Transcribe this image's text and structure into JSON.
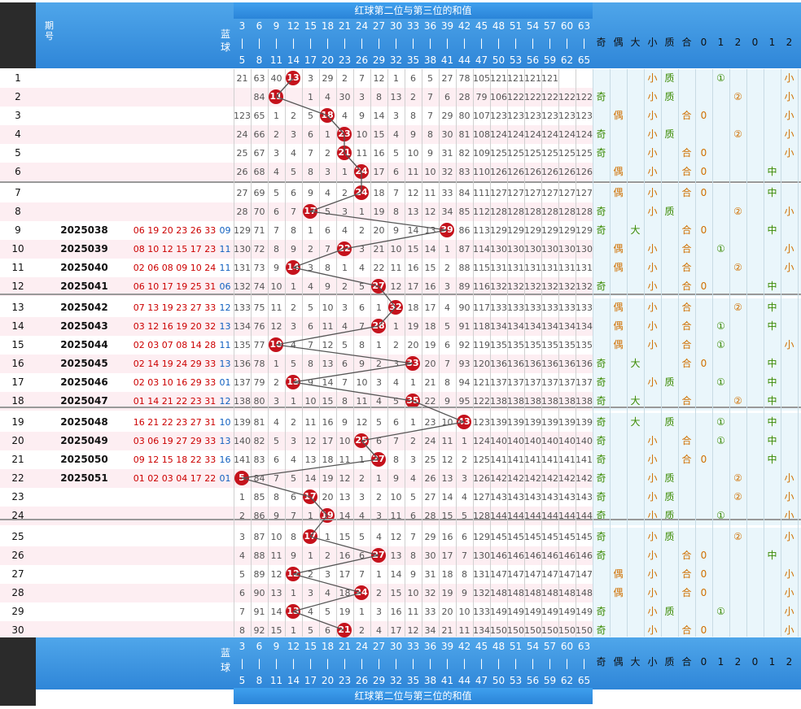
{
  "header": {
    "title": "红球第二位与第三位的和值",
    "period_label": "期号",
    "blue_label": "蓝球",
    "col_top": [
      "3",
      "6",
      "9",
      "12",
      "15",
      "18",
      "21",
      "24",
      "27",
      "30",
      "33",
      "36",
      "39",
      "42",
      "45",
      "48",
      "51",
      "54",
      "57",
      "60",
      "63"
    ],
    "col_bot": [
      "5",
      "8",
      "11",
      "14",
      "17",
      "20",
      "23",
      "26",
      "29",
      "32",
      "35",
      "38",
      "41",
      "44",
      "47",
      "50",
      "53",
      "56",
      "59",
      "62",
      "65"
    ],
    "attr_labels": [
      "奇",
      "偶",
      "大",
      "小",
      "质",
      "合",
      "0",
      "1",
      "2",
      "0",
      "1",
      "2"
    ],
    "footer_title": "红球第二位与第三位的和值"
  },
  "rows": [
    {
      "no": "1",
      "q": "",
      "red": "",
      "blue": "",
      "ball": 13,
      "nums": [
        "21",
        "63",
        "40",
        "",
        "3",
        "29",
        "2",
        "7",
        "12",
        "1",
        "6",
        "5",
        "27",
        "78",
        "105",
        "121",
        "121",
        "121",
        "121",
        "",
        ""
      ],
      "attrs": [
        "",
        "",
        "",
        "小",
        "质",
        "",
        "",
        "①",
        "",
        "",
        "",
        "小"
      ]
    },
    {
      "no": "2",
      "q": "",
      "red": "",
      "blue": "",
      "ball": 11,
      "nums": [
        "",
        "84",
        "",
        "",
        "1",
        "4",
        "30",
        "3",
        "8",
        "13",
        "2",
        "7",
        "6",
        "28",
        "79",
        "106",
        "122",
        "122",
        "122",
        "122",
        "122"
      ],
      "attrs": [
        "奇",
        "",
        "",
        "小",
        "质",
        "",
        "",
        "",
        "②",
        "",
        "",
        "小"
      ]
    },
    {
      "no": "3",
      "q": "",
      "red": "",
      "blue": "",
      "ball": 18,
      "nums": [
        "123",
        "65",
        "1",
        "2",
        "5",
        "",
        "4",
        "9",
        "14",
        "3",
        "8",
        "7",
        "29",
        "80",
        "107",
        "123",
        "123",
        "123",
        "123",
        "123",
        "123"
      ],
      "attrs": [
        "",
        "偶",
        "",
        "小",
        "",
        "合",
        "0",
        "",
        "",
        "",
        "",
        "小"
      ]
    },
    {
      "no": "4",
      "q": "",
      "red": "",
      "blue": "",
      "ball": 23,
      "nums": [
        "24",
        "66",
        "2",
        "3",
        "6",
        "1",
        "",
        "10",
        "15",
        "4",
        "9",
        "8",
        "30",
        "81",
        "108",
        "124",
        "124",
        "124",
        "124",
        "124",
        "124"
      ],
      "attrs": [
        "奇",
        "",
        "",
        "小",
        "质",
        "",
        "",
        "",
        "②",
        "",
        "",
        "小"
      ]
    },
    {
      "no": "5",
      "q": "",
      "red": "",
      "blue": "",
      "ball": 21,
      "nums": [
        "25",
        "67",
        "3",
        "4",
        "7",
        "2",
        "",
        "11",
        "16",
        "5",
        "10",
        "9",
        "31",
        "82",
        "109",
        "125",
        "125",
        "125",
        "125",
        "125",
        "125"
      ],
      "attrs": [
        "奇",
        "",
        "",
        "小",
        "",
        "合",
        "0",
        "",
        "",
        "",
        "",
        "小"
      ]
    },
    {
      "no": "6",
      "q": "",
      "red": "",
      "blue": "",
      "ball": 24,
      "nums": [
        "26",
        "68",
        "4",
        "5",
        "8",
        "3",
        "1",
        "",
        "17",
        "6",
        "11",
        "10",
        "32",
        "83",
        "110",
        "126",
        "126",
        "126",
        "126",
        "126",
        "126"
      ],
      "attrs": [
        "",
        "偶",
        "",
        "小",
        "",
        "合",
        "0",
        "",
        "",
        "",
        "中",
        ""
      ]
    },
    {
      "no": "7",
      "q": "",
      "red": "",
      "blue": "",
      "ball": 24,
      "nums": [
        "27",
        "69",
        "5",
        "6",
        "9",
        "4",
        "2",
        "",
        "18",
        "7",
        "12",
        "11",
        "33",
        "84",
        "111",
        "127",
        "127",
        "127",
        "127",
        "127",
        "127"
      ],
      "attrs": [
        "",
        "偶",
        "",
        "小",
        "",
        "合",
        "0",
        "",
        "",
        "",
        "中",
        ""
      ]
    },
    {
      "no": "8",
      "q": "",
      "red": "",
      "blue": "",
      "ball": 17,
      "nums": [
        "28",
        "70",
        "6",
        "7",
        "",
        "5",
        "3",
        "1",
        "19",
        "8",
        "13",
        "12",
        "34",
        "85",
        "112",
        "128",
        "128",
        "128",
        "128",
        "128",
        "128"
      ],
      "attrs": [
        "奇",
        "",
        "",
        "小",
        "质",
        "",
        "",
        "",
        "②",
        "",
        "",
        "小"
      ]
    },
    {
      "no": "9",
      "q": "2025038",
      "red": "06 19 20 23 26 33",
      "blue": "09",
      "ball": 39,
      "nums": [
        "129",
        "71",
        "7",
        "8",
        "1",
        "6",
        "4",
        "2",
        "20",
        "9",
        "14",
        "13",
        "",
        "86",
        "113",
        "129",
        "129",
        "129",
        "129",
        "129",
        "129"
      ],
      "attrs": [
        "奇",
        "",
        "大",
        "",
        "",
        "合",
        "0",
        "",
        "",
        "",
        "中",
        ""
      ]
    },
    {
      "no": "10",
      "q": "2025039",
      "red": "08 10 12 15 17 23",
      "blue": "11",
      "ball": 22,
      "nums": [
        "130",
        "72",
        "8",
        "9",
        "2",
        "7",
        "",
        "3",
        "21",
        "10",
        "15",
        "14",
        "1",
        "87",
        "114",
        "130",
        "130",
        "130",
        "130",
        "130",
        "130"
      ],
      "attrs": [
        "",
        "偶",
        "",
        "小",
        "",
        "合",
        "",
        "①",
        "",
        "",
        "",
        "小"
      ]
    },
    {
      "no": "11",
      "q": "2025040",
      "red": "02 06 08 09 10 24",
      "blue": "11",
      "ball": 14,
      "nums": [
        "131",
        "73",
        "9",
        "",
        "3",
        "8",
        "1",
        "4",
        "22",
        "11",
        "16",
        "15",
        "2",
        "88",
        "115",
        "131",
        "131",
        "131",
        "131",
        "131",
        "131"
      ],
      "attrs": [
        "",
        "偶",
        "",
        "小",
        "",
        "合",
        "",
        "",
        "②",
        "",
        "",
        "小"
      ]
    },
    {
      "no": "12",
      "q": "2025041",
      "red": "06 10 17 19 25 31",
      "blue": "06",
      "ball": 27,
      "nums": [
        "132",
        "74",
        "10",
        "1",
        "4",
        "9",
        "2",
        "5",
        "",
        "12",
        "17",
        "16",
        "3",
        "89",
        "116",
        "132",
        "132",
        "132",
        "132",
        "132",
        "132"
      ],
      "attrs": [
        "奇",
        "",
        "",
        "小",
        "",
        "合",
        "0",
        "",
        "",
        "",
        "中",
        ""
      ]
    },
    {
      "no": "13",
      "q": "2025042",
      "red": "07 13 19 23 27 33",
      "blue": "12",
      "ball": 32,
      "nums": [
        "133",
        "75",
        "11",
        "2",
        "5",
        "10",
        "3",
        "6",
        "1",
        "",
        "18",
        "17",
        "4",
        "90",
        "117",
        "133",
        "133",
        "133",
        "133",
        "133",
        "133"
      ],
      "attrs": [
        "",
        "偶",
        "",
        "小",
        "",
        "合",
        "",
        "",
        "②",
        "",
        "中",
        ""
      ]
    },
    {
      "no": "14",
      "q": "2025043",
      "red": "03 12 16 19 20 32",
      "blue": "13",
      "ball": 28,
      "nums": [
        "134",
        "76",
        "12",
        "3",
        "6",
        "11",
        "4",
        "7",
        "",
        "1",
        "19",
        "18",
        "5",
        "91",
        "118",
        "134",
        "134",
        "134",
        "134",
        "134",
        "134"
      ],
      "attrs": [
        "",
        "偶",
        "",
        "小",
        "",
        "合",
        "",
        "①",
        "",
        "",
        "中",
        ""
      ]
    },
    {
      "no": "15",
      "q": "2025044",
      "red": "02 03 07 08 14 28",
      "blue": "11",
      "ball": 10,
      "nums": [
        "135",
        "77",
        "",
        "4",
        "7",
        "12",
        "5",
        "8",
        "1",
        "2",
        "20",
        "19",
        "6",
        "92",
        "119",
        "135",
        "135",
        "135",
        "135",
        "135",
        "135"
      ],
      "attrs": [
        "",
        "偶",
        "",
        "小",
        "",
        "合",
        "",
        "①",
        "",
        "",
        "",
        "小"
      ]
    },
    {
      "no": "16",
      "q": "2025045",
      "red": "02 14 19 24 29 33",
      "blue": "13",
      "ball": 33,
      "nums": [
        "136",
        "78",
        "1",
        "5",
        "8",
        "13",
        "6",
        "9",
        "2",
        "3",
        "",
        "20",
        "7",
        "93",
        "120",
        "136",
        "136",
        "136",
        "136",
        "136",
        "136"
      ],
      "attrs": [
        "奇",
        "",
        "大",
        "",
        "",
        "合",
        "0",
        "",
        "",
        "",
        "中",
        ""
      ]
    },
    {
      "no": "17",
      "q": "2025046",
      "red": "02 03 10 16 29 33",
      "blue": "01",
      "ball": 13,
      "nums": [
        "137",
        "79",
        "2",
        "",
        "9",
        "14",
        "7",
        "10",
        "3",
        "4",
        "1",
        "21",
        "8",
        "94",
        "121",
        "137",
        "137",
        "137",
        "137",
        "137",
        "137"
      ],
      "attrs": [
        "奇",
        "",
        "",
        "小",
        "质",
        "",
        "",
        "①",
        "",
        "",
        "中",
        ""
      ]
    },
    {
      "no": "18",
      "q": "2025047",
      "red": "01 14 21 22 23 31",
      "blue": "12",
      "ball": 35,
      "nums": [
        "138",
        "80",
        "3",
        "1",
        "10",
        "15",
        "8",
        "11",
        "4",
        "5",
        "",
        "22",
        "9",
        "95",
        "122",
        "138",
        "138",
        "138",
        "138",
        "138",
        "138"
      ],
      "attrs": [
        "奇",
        "",
        "大",
        "",
        "",
        "合",
        "",
        "",
        "②",
        "",
        "中",
        ""
      ]
    },
    {
      "no": "19",
      "q": "2025048",
      "red": "16 21 22 23 27 31",
      "blue": "10",
      "ball": 43,
      "nums": [
        "139",
        "81",
        "4",
        "2",
        "11",
        "16",
        "9",
        "12",
        "5",
        "6",
        "1",
        "23",
        "10",
        "",
        "123",
        "139",
        "139",
        "139",
        "139",
        "139",
        "139"
      ],
      "attrs": [
        "奇",
        "",
        "大",
        "",
        "质",
        "",
        "",
        "①",
        "",
        "",
        "中",
        ""
      ]
    },
    {
      "no": "20",
      "q": "2025049",
      "red": "03 06 19 27 29 33",
      "blue": "13",
      "ball": 25,
      "nums": [
        "140",
        "82",
        "5",
        "3",
        "12",
        "17",
        "10",
        "",
        "6",
        "7",
        "2",
        "24",
        "11",
        "1",
        "124",
        "140",
        "140",
        "140",
        "140",
        "140",
        "140"
      ],
      "attrs": [
        "奇",
        "",
        "",
        "小",
        "",
        "合",
        "",
        "①",
        "",
        "",
        "中",
        ""
      ]
    },
    {
      "no": "21",
      "q": "2025050",
      "red": "09 12 15 18 22 33",
      "blue": "16",
      "ball": 27,
      "nums": [
        "141",
        "83",
        "6",
        "4",
        "13",
        "18",
        "11",
        "1",
        "",
        "8",
        "3",
        "25",
        "12",
        "2",
        "125",
        "141",
        "141",
        "141",
        "141",
        "141",
        "141"
      ],
      "attrs": [
        "奇",
        "",
        "",
        "小",
        "",
        "合",
        "0",
        "",
        "",
        "",
        "中",
        ""
      ]
    },
    {
      "no": "22",
      "q": "2025051",
      "red": "01 02 03 04 17 22",
      "blue": "01",
      "ball": 5,
      "nums": [
        "",
        "84",
        "7",
        "5",
        "14",
        "19",
        "12",
        "2",
        "1",
        "9",
        "4",
        "26",
        "13",
        "3",
        "126",
        "142",
        "142",
        "142",
        "142",
        "142",
        "142"
      ],
      "attrs": [
        "奇",
        "",
        "",
        "小",
        "质",
        "",
        "",
        "",
        "②",
        "",
        "",
        "小"
      ]
    },
    {
      "no": "23",
      "q": "",
      "red": "",
      "blue": "",
      "ball": 17,
      "nums": [
        "1",
        "85",
        "8",
        "6",
        "",
        "20",
        "13",
        "3",
        "2",
        "10",
        "5",
        "27",
        "14",
        "4",
        "127",
        "143",
        "143",
        "143",
        "143",
        "143",
        "143"
      ],
      "attrs": [
        "奇",
        "",
        "",
        "小",
        "质",
        "",
        "",
        "",
        "②",
        "",
        "",
        "小"
      ]
    },
    {
      "no": "24",
      "q": "",
      "red": "",
      "blue": "",
      "ball": 19,
      "nums": [
        "2",
        "86",
        "9",
        "7",
        "1",
        "",
        "14",
        "4",
        "3",
        "11",
        "6",
        "28",
        "15",
        "5",
        "128",
        "144",
        "144",
        "144",
        "144",
        "144",
        "144"
      ],
      "attrs": [
        "奇",
        "",
        "",
        "小",
        "质",
        "",
        "",
        "①",
        "",
        "",
        "",
        "小"
      ]
    },
    {
      "no": "25",
      "q": "",
      "red": "",
      "blue": "",
      "ball": 17,
      "nums": [
        "3",
        "87",
        "10",
        "8",
        "",
        "1",
        "15",
        "5",
        "4",
        "12",
        "7",
        "29",
        "16",
        "6",
        "129",
        "145",
        "145",
        "145",
        "145",
        "145",
        "145"
      ],
      "attrs": [
        "奇",
        "",
        "",
        "小",
        "质",
        "",
        "",
        "",
        "②",
        "",
        "",
        "小"
      ]
    },
    {
      "no": "26",
      "q": "",
      "red": "",
      "blue": "",
      "ball": 27,
      "nums": [
        "4",
        "88",
        "11",
        "9",
        "1",
        "2",
        "16",
        "6",
        "",
        "13",
        "8",
        "30",
        "17",
        "7",
        "130",
        "146",
        "146",
        "146",
        "146",
        "146",
        "146"
      ],
      "attrs": [
        "奇",
        "",
        "",
        "小",
        "",
        "合",
        "0",
        "",
        "",
        "",
        "中",
        ""
      ]
    },
    {
      "no": "27",
      "q": "",
      "red": "",
      "blue": "",
      "ball": 12,
      "nums": [
        "5",
        "89",
        "12",
        "",
        "2",
        "3",
        "17",
        "7",
        "1",
        "14",
        "9",
        "31",
        "18",
        "8",
        "131",
        "147",
        "147",
        "147",
        "147",
        "147",
        "147"
      ],
      "attrs": [
        "",
        "偶",
        "",
        "小",
        "",
        "合",
        "0",
        "",
        "",
        "",
        "",
        "小"
      ]
    },
    {
      "no": "28",
      "q": "",
      "red": "",
      "blue": "",
      "ball": 24,
      "nums": [
        "6",
        "90",
        "13",
        "1",
        "3",
        "4",
        "18",
        "",
        "2",
        "15",
        "10",
        "32",
        "19",
        "9",
        "132",
        "148",
        "148",
        "148",
        "148",
        "148",
        "148"
      ],
      "attrs": [
        "",
        "偶",
        "",
        "小",
        "",
        "合",
        "0",
        "",
        "",
        "",
        "",
        "小"
      ]
    },
    {
      "no": "29",
      "q": "",
      "red": "",
      "blue": "",
      "ball": 13,
      "nums": [
        "7",
        "91",
        "14",
        "",
        "4",
        "5",
        "19",
        "1",
        "3",
        "16",
        "11",
        "33",
        "20",
        "10",
        "133",
        "149",
        "149",
        "149",
        "149",
        "149",
        "149"
      ],
      "attrs": [
        "奇",
        "",
        "",
        "小",
        "质",
        "",
        "",
        "①",
        "",
        "",
        "",
        "小"
      ]
    },
    {
      "no": "30",
      "q": "",
      "red": "",
      "blue": "",
      "ball": 21,
      "nums": [
        "8",
        "92",
        "15",
        "1",
        "5",
        "6",
        "",
        "2",
        "4",
        "17",
        "12",
        "34",
        "21",
        "11",
        "134",
        "150",
        "150",
        "150",
        "150",
        "150",
        "150"
      ],
      "attrs": [
        "奇",
        "",
        "",
        "小",
        "",
        "合",
        "0",
        "",
        "",
        "",
        "",
        "小"
      ]
    }
  ],
  "colors": {
    "header_blue": "#3a97e4",
    "ball_red": "#c5121c",
    "pink_row": "#fdeef2",
    "attr_bg": "#eaf6fb"
  }
}
